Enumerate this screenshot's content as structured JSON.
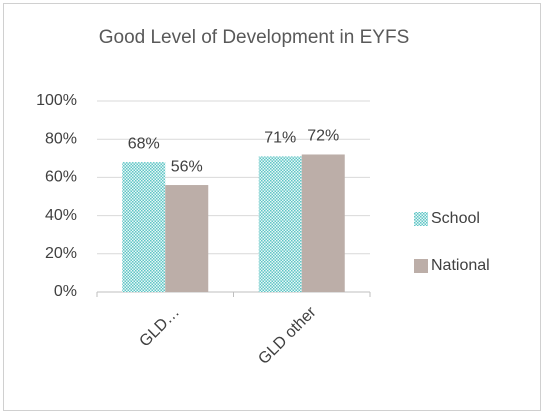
{
  "chart_data": {
    "type": "bar",
    "title": "Good Level of Development in EYFS",
    "categories": [
      "GLD…",
      "GLD other"
    ],
    "series": [
      {
        "name": "School",
        "color": "#5fc6c6",
        "values": [
          68,
          71
        ],
        "value_labels": [
          "68%",
          "71%"
        ]
      },
      {
        "name": "National",
        "color": "#bcaea8",
        "values": [
          56,
          72
        ],
        "value_labels": [
          "56%",
          "72%"
        ]
      }
    ],
    "ylim": [
      0,
      100
    ],
    "yticks": [
      {
        "value": 0,
        "label": "0%"
      },
      {
        "value": 20,
        "label": "20%"
      },
      {
        "value": 40,
        "label": "40%"
      },
      {
        "value": 60,
        "label": "60%"
      },
      {
        "value": 80,
        "label": "80%"
      },
      {
        "value": 100,
        "label": "100%"
      }
    ],
    "grid": true,
    "legend": "right"
  }
}
